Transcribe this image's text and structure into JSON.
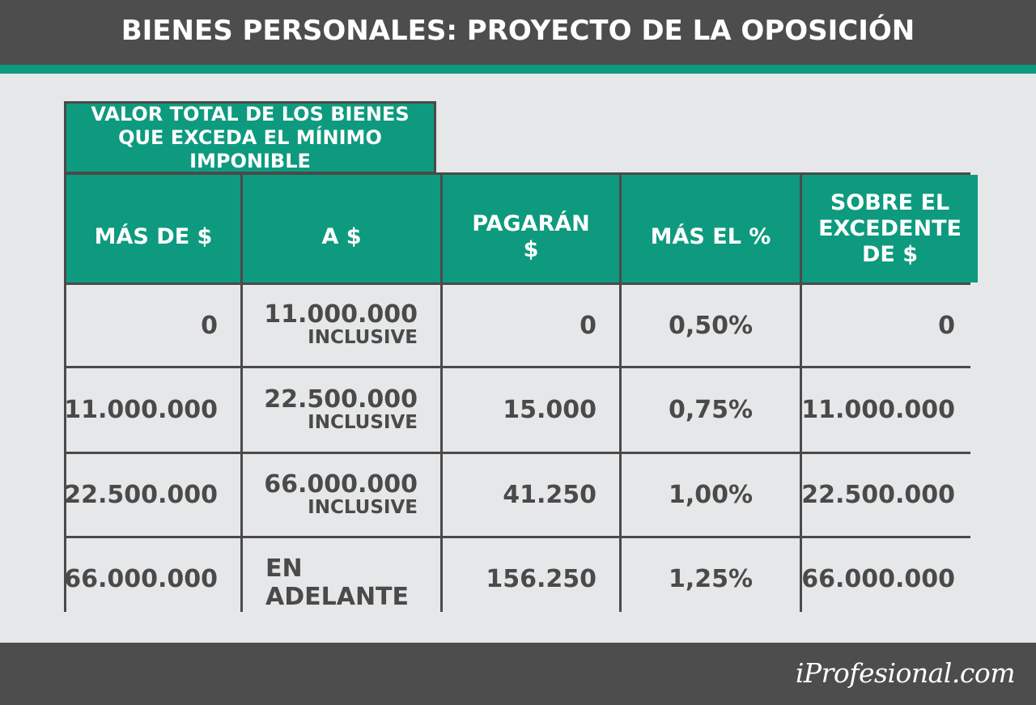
{
  "title": "BIENES PERSONALES: PROYECTO DE LA OPOSICIÓN",
  "brand": "iProfesional.com",
  "colors": {
    "header_bar": "#4d4d4d",
    "accent": "#0e9a7e",
    "background": "#e6e7e8",
    "text": "#4a4a4a"
  },
  "chart_data": {
    "type": "table",
    "group_header": "VALOR TOTAL DE LOS BIENES QUE EXCEDA EL MÍNIMO IMPONIBLE",
    "columns": [
      "MÁS DE $",
      "A $",
      "PAGARÁN $",
      "MÁS EL %",
      "SOBRE EL EXCEDENTE DE $"
    ],
    "rows": [
      {
        "mas_de": "0",
        "a": "11.000.000",
        "a_note": "INCLUSIVE",
        "pagaran": "0",
        "mas_el": "0,50%",
        "sobre": "0"
      },
      {
        "mas_de": "11.000.000",
        "a": "22.500.000",
        "a_note": "INCLUSIVE",
        "pagaran": "15.000",
        "mas_el": "0,75%",
        "sobre": "11.000.000"
      },
      {
        "mas_de": "22.500.000",
        "a": "66.000.000",
        "a_note": "INCLUSIVE",
        "pagaran": "41.250",
        "mas_el": "1,00%",
        "sobre": "22.500.000"
      },
      {
        "mas_de": "66.000.000",
        "a": "EN ADELANTE",
        "a_note": "",
        "pagaran": "156.250",
        "mas_el": "1,25%",
        "sobre": "66.000.000"
      }
    ]
  }
}
